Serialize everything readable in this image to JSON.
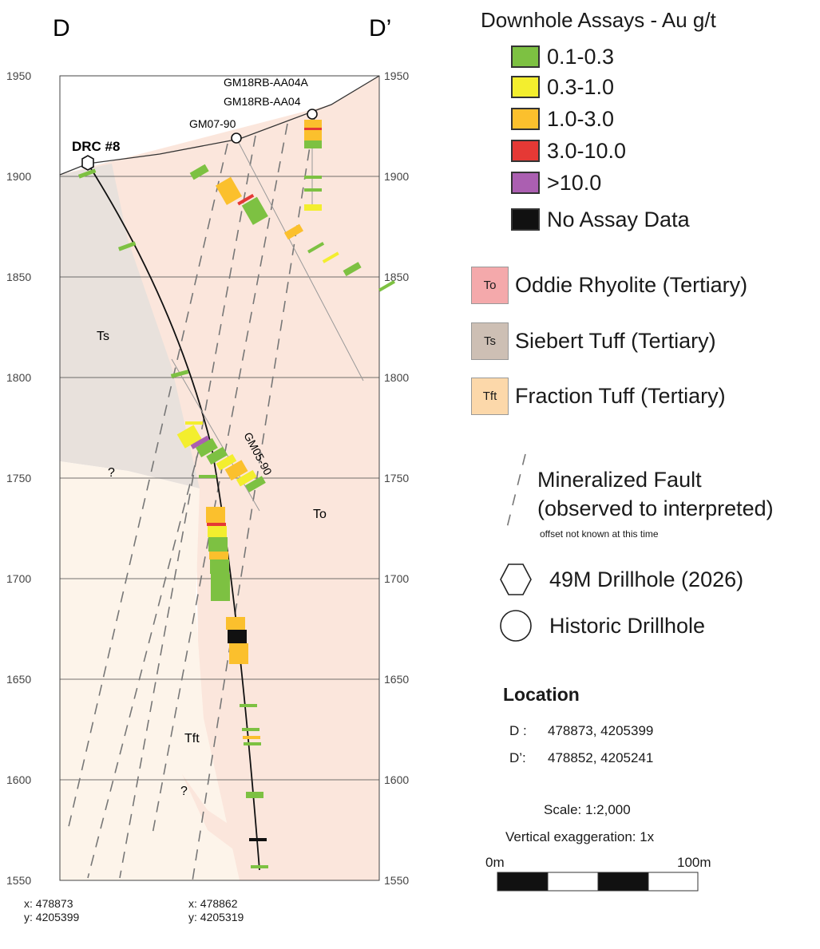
{
  "section": {
    "start_label": "D",
    "end_label": "D’",
    "elevation_ticks": [
      "1950",
      "1900",
      "1850",
      "1800",
      "1750",
      "1700",
      "1650",
      "1600",
      "1550"
    ],
    "unit_labels": [
      "Ts",
      "To",
      "Tft"
    ],
    "unknown_labels": [
      "?",
      "?"
    ],
    "drillholes": [
      {
        "name": "DRC #8",
        "type": "49M Drillhole (2026)"
      },
      {
        "name": "GM07-90",
        "type": "Historic Drillhole"
      },
      {
        "name": "GM18RB-AA04A",
        "type": "Historic Drillhole"
      },
      {
        "name": "GM18RB-AA04",
        "type": "Historic Drillhole"
      },
      {
        "name": "GM05-90",
        "type": "Historic Drillhole"
      }
    ],
    "bottom_coords": [
      {
        "x": "x: 478873",
        "y": "y: 4205399"
      },
      {
        "x": "x: 478862",
        "y": "y: 4205319"
      }
    ],
    "colors": {
      "oddie": "#fbe6dc",
      "siebert": "#e8e1dc",
      "fraction": "#fdf4ea",
      "grid": "#444444"
    }
  },
  "legend": {
    "title": "Downhole Assays - Au g/t",
    "assays": [
      {
        "label": "0.1-0.3",
        "color": "#7dc142"
      },
      {
        "label": "0.3-1.0",
        "color": "#f3ee2e"
      },
      {
        "label": "1.0-3.0",
        "color": "#fbc02d"
      },
      {
        "label": "3.0-10.0",
        "color": "#e53935"
      },
      {
        "label": ">10.0",
        "color": "#ab5fb1"
      },
      {
        "label": "No Assay Data",
        "color": "#111111"
      }
    ],
    "units": [
      {
        "code": "To",
        "label": "Oddie Rhyolite (Tertiary)",
        "color": "#f4a9ab"
      },
      {
        "code": "Ts",
        "label": "Siebert Tuff (Tertiary)",
        "color": "#cdbfb4"
      },
      {
        "code": "Tft",
        "label": "Fraction Tuff (Tertiary)",
        "color": "#fcd8aa"
      }
    ],
    "fault": {
      "line1": "Mineralized Fault",
      "line2": "(observed to interpreted)",
      "note": "offset not known at this time"
    },
    "symbols": [
      {
        "icon": "hexagon-icon",
        "label": "49M Drillhole (2026)"
      },
      {
        "icon": "circle-icon",
        "label": "Historic Drillhole"
      }
    ]
  },
  "location": {
    "title": "Location",
    "rows": [
      {
        "key": "D :",
        "value": "478873, 4205399"
      },
      {
        "key": "D’:",
        "value": "478852, 4205241"
      }
    ],
    "scale": "Scale: 1:2,000",
    "exaggeration": "Vertical exaggeration: 1x",
    "bar_start": "0m",
    "bar_end": "100m"
  }
}
